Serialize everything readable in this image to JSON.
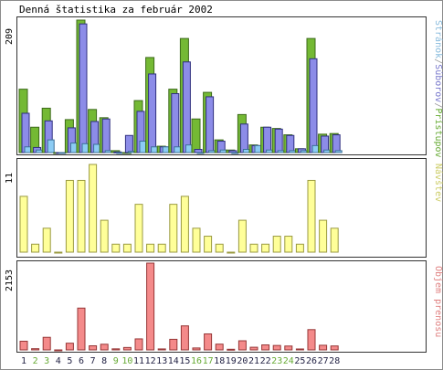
{
  "title": "Denná štatistika za február 2002",
  "colors": {
    "panel_border": "#333333",
    "grid_border": "#8c8c8c",
    "green": "#74b934",
    "green_stroke": "#3c6a1a",
    "blue": "#8c8ce8",
    "blue_stroke": "#2f2f80",
    "cyan": "#8cccf4",
    "cyan_stroke": "#3c6f98",
    "yellow": "#ffff99",
    "yellow_stroke": "#9a9a40",
    "pink": "#f48a8a",
    "pink_stroke": "#963636",
    "weekend_label": "#66aa33",
    "weekday_label": "#222244",
    "legend_green": "#66aa33",
    "legend_blue": "#7777cc",
    "legend_cyan": "#88bbdd",
    "legend_yellow": "#cccc66",
    "legend_pink": "#e08080"
  },
  "chart_data": [
    {
      "type": "bar",
      "panel": "top",
      "ymax_label": "209",
      "ylim": [
        0,
        209
      ],
      "right_label_parts": [
        "Stránok",
        "/",
        "Súborov",
        "/",
        "Prístupov"
      ],
      "categories": [
        "1",
        "2",
        "3",
        "4",
        "5",
        "6",
        "7",
        "8",
        "9",
        "10",
        "11",
        "12",
        "13",
        "14",
        "15",
        "16",
        "17",
        "18",
        "19",
        "20",
        "21",
        "22",
        "23",
        "24",
        "25",
        "26",
        "27",
        "28"
      ],
      "series": [
        {
          "name": "Prístupov",
          "values": [
            100,
            40,
            70,
            0,
            52,
            209,
            68,
            55,
            3,
            0,
            82,
            150,
            10,
            100,
            180,
            53,
            95,
            20,
            4,
            60,
            12,
            40,
            38,
            28,
            6,
            180,
            29,
            30
          ]
        },
        {
          "name": "Súborov",
          "values": [
            62,
            8,
            50,
            0,
            39,
            203,
            49,
            53,
            1,
            27,
            65,
            124,
            9,
            93,
            143,
            5,
            88,
            18,
            3,
            45,
            11,
            40,
            37,
            27,
            6,
            148,
            26,
            28
          ]
        },
        {
          "name": "Stránok",
          "values": [
            9,
            4,
            20,
            0,
            15,
            14,
            13,
            3,
            0,
            2,
            18,
            9,
            9,
            9,
            12,
            0,
            3,
            4,
            0,
            5,
            11,
            4,
            3,
            3,
            3,
            11,
            4,
            3
          ]
        }
      ]
    },
    {
      "type": "bar",
      "panel": "middle",
      "ymax_label": "11",
      "ylim": [
        0,
        11
      ],
      "right_label": "Návštev",
      "categories": [
        "1",
        "2",
        "3",
        "4",
        "5",
        "6",
        "7",
        "8",
        "9",
        "10",
        "11",
        "12",
        "13",
        "14",
        "15",
        "16",
        "17",
        "18",
        "19",
        "20",
        "21",
        "22",
        "23",
        "24",
        "25",
        "26",
        "27",
        "28"
      ],
      "series": [
        {
          "name": "Návštev",
          "values": [
            7,
            1,
            3,
            0,
            9,
            9,
            11,
            4,
            1,
            1,
            6,
            1,
            1,
            6,
            7,
            3,
            2,
            1,
            0,
            4,
            1,
            1,
            2,
            2,
            1,
            9,
            4,
            3
          ]
        }
      ]
    },
    {
      "type": "bar",
      "panel": "bottom",
      "ymax_label": "2153",
      "ylim": [
        0,
        2153
      ],
      "right_label": "Objem prenosu",
      "categories": [
        "1",
        "2",
        "3",
        "4",
        "5",
        "6",
        "7",
        "8",
        "9",
        "10",
        "11",
        "12",
        "13",
        "14",
        "15",
        "16",
        "17",
        "18",
        "19",
        "20",
        "21",
        "22",
        "23",
        "24",
        "25",
        "26",
        "27",
        "28"
      ],
      "series": [
        {
          "name": "Objem prenosu",
          "values": [
            215,
            30,
            312,
            0,
            166,
            1037,
            102,
            140,
            26,
            60,
            273,
            2153,
            24,
            263,
            596,
            48,
            397,
            143,
            16,
            226,
            66,
            124,
            110,
            96,
            23,
            503,
            115,
            98
          ]
        }
      ]
    }
  ],
  "x_axis": {
    "labels": [
      "1",
      "2",
      "3",
      "4",
      "5",
      "6",
      "7",
      "8",
      "9",
      "10",
      "11",
      "12",
      "13",
      "14",
      "15",
      "16",
      "17",
      "18",
      "19",
      "20",
      "21",
      "22",
      "23",
      "24",
      "25",
      "26",
      "27",
      "28"
    ],
    "weekend_days": [
      "2",
      "3",
      "9",
      "10",
      "16",
      "17",
      "23",
      "24"
    ]
  }
}
